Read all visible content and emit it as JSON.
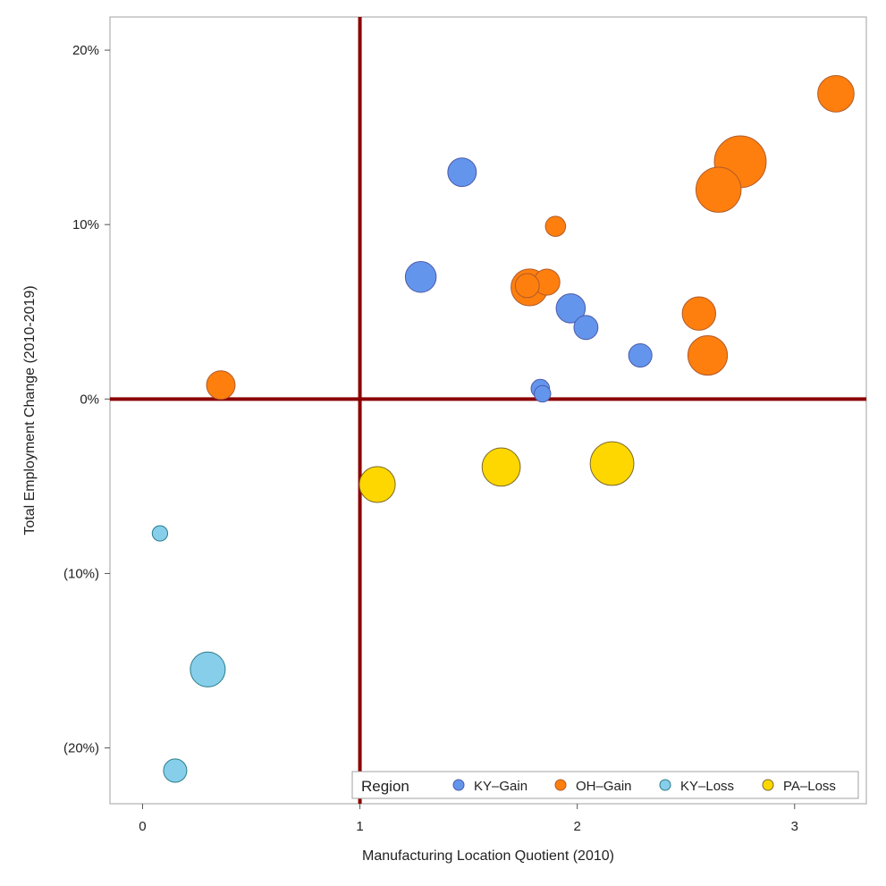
{
  "chart_data": {
    "type": "bubble",
    "xlabel": "Manufacturing Location Quotient (2010)",
    "ylabel": "Total Employment Change (2010-2019)",
    "xlim": [
      -0.15,
      3.33
    ],
    "ylim": [
      -0.232,
      0.219
    ],
    "x_ticks": [
      {
        "value": 0,
        "label": "0"
      },
      {
        "value": 1,
        "label": "1"
      },
      {
        "value": 2,
        "label": "2"
      },
      {
        "value": 3,
        "label": "3"
      }
    ],
    "y_ticks": [
      {
        "value": 0.2,
        "label": "20%"
      },
      {
        "value": 0.1,
        "label": "10%"
      },
      {
        "value": 0.0,
        "label": "0%"
      },
      {
        "value": -0.1,
        "label": "(10%)"
      },
      {
        "value": -0.2,
        "label": "(20%)"
      }
    ],
    "reference_lines": {
      "x": 1,
      "y": 0,
      "color": "#8b0000"
    },
    "grid": false,
    "legend": {
      "title": "Region",
      "placement": "bottom-right"
    },
    "series": [
      {
        "name": "KY–Gain",
        "color": "#6495ed",
        "stroke": "#4a5aa8",
        "points": [
          {
            "x": 1.47,
            "y": 0.13,
            "size": 2.4
          },
          {
            "x": 1.28,
            "y": 0.07,
            "size": 2.8
          },
          {
            "x": 1.97,
            "y": 0.052,
            "size": 2.5
          },
          {
            "x": 2.04,
            "y": 0.041,
            "size": 1.7
          },
          {
            "x": 2.29,
            "y": 0.025,
            "size": 1.6
          },
          {
            "x": 1.83,
            "y": 0.006,
            "size": 1.0
          },
          {
            "x": 1.84,
            "y": 0.003,
            "size": 0.8
          }
        ]
      },
      {
        "name": "OH–Gain",
        "color": "#ff7f0e",
        "stroke": "#b05a2a",
        "points": [
          {
            "x": 3.19,
            "y": 0.175,
            "size": 3.9
          },
          {
            "x": 2.75,
            "y": 0.136,
            "size": 7.9
          },
          {
            "x": 2.65,
            "y": 0.12,
            "size": 6.0
          },
          {
            "x": 1.9,
            "y": 0.099,
            "size": 1.2
          },
          {
            "x": 1.78,
            "y": 0.064,
            "size": 4.0
          },
          {
            "x": 1.86,
            "y": 0.067,
            "size": 2.0
          },
          {
            "x": 1.77,
            "y": 0.065,
            "size": 1.7
          },
          {
            "x": 2.56,
            "y": 0.049,
            "size": 3.3
          },
          {
            "x": 2.6,
            "y": 0.025,
            "size": 4.6
          },
          {
            "x": 0.36,
            "y": 0.008,
            "size": 2.4
          }
        ]
      },
      {
        "name": "KY–Loss",
        "color": "#87ceeb",
        "stroke": "#2b7d8a",
        "points": [
          {
            "x": 0.08,
            "y": -0.077,
            "size": 0.7
          },
          {
            "x": 0.3,
            "y": -0.155,
            "size": 3.6
          },
          {
            "x": 0.15,
            "y": -0.213,
            "size": 1.6
          }
        ]
      },
      {
        "name": "PA–Loss",
        "color": "#ffd700",
        "stroke": "#7a6a2a",
        "points": [
          {
            "x": 1.08,
            "y": -0.049,
            "size": 3.8
          },
          {
            "x": 1.65,
            "y": -0.039,
            "size": 4.3
          },
          {
            "x": 2.16,
            "y": -0.037,
            "size": 5.6
          }
        ]
      }
    ]
  }
}
